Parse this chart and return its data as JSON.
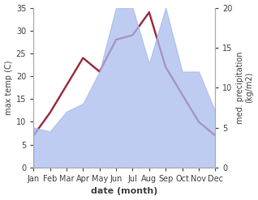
{
  "months": [
    "Jan",
    "Feb",
    "Mar",
    "Apr",
    "May",
    "Jun",
    "Jul",
    "Aug",
    "Sep",
    "Oct",
    "Nov",
    "Dec"
  ],
  "month_x": [
    0,
    1,
    2,
    3,
    4,
    5,
    6,
    7,
    8,
    9,
    10,
    11
  ],
  "temperature": [
    7,
    12,
    18,
    24,
    21,
    28,
    29,
    34,
    22,
    16,
    10,
    7
  ],
  "precipitation": [
    5,
    4.5,
    7,
    8,
    12,
    20,
    20,
    13,
    20,
    12,
    12,
    7
  ],
  "temp_color": "#993344",
  "precip_color": "#aabbee",
  "precip_alpha": 0.75,
  "temp_ylim": [
    0,
    35
  ],
  "precip_ylim": [
    0,
    20
  ],
  "temp_yticks": [
    0,
    5,
    10,
    15,
    20,
    25,
    30,
    35
  ],
  "precip_yticks": [
    0,
    5,
    10,
    15,
    20
  ],
  "xlabel": "date (month)",
  "ylabel_left": "max temp (C)",
  "ylabel_right": "med. precipitation\n(kg/m2)",
  "temp_linewidth": 1.8,
  "background_color": "#ffffff",
  "spine_color": "#aaaaaa",
  "tick_color": "#444444",
  "label_fontsize": 7,
  "xlabel_fontsize": 8
}
